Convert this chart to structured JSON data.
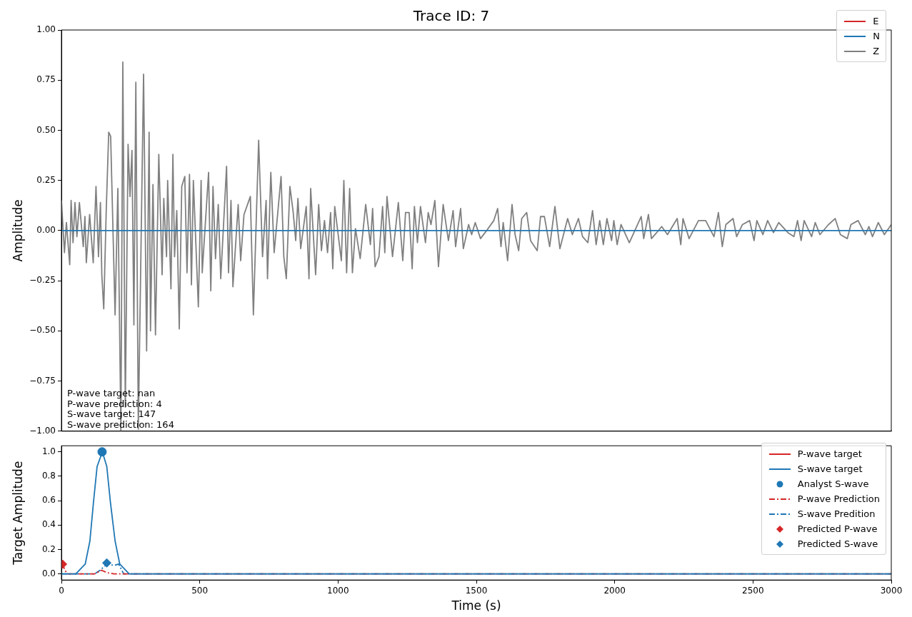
{
  "chart_data": [
    {
      "type": "line",
      "title": "Trace ID: 7",
      "ylabel": "Amplitude",
      "xlim": [
        0,
        3000
      ],
      "ylim": [
        -1,
        1
      ],
      "xticks": [
        0,
        500,
        1000,
        1500,
        2000,
        2500,
        3000
      ],
      "yticks": [
        {
          "value": -1,
          "label": "−1.00"
        },
        {
          "value": -0.75,
          "label": "−0.75"
        },
        {
          "value": -0.5,
          "label": "−0.50"
        },
        {
          "value": -0.25,
          "label": "−0.25"
        },
        {
          "value": 0,
          "label": "0.00"
        },
        {
          "value": 0.25,
          "label": "0.25"
        },
        {
          "value": 0.5,
          "label": "0.50"
        },
        {
          "value": 0.75,
          "label": "0.75"
        },
        {
          "value": 1,
          "label": "1.00"
        }
      ],
      "tick_labels": "y",
      "grid": false,
      "legend": "top right",
      "annotations": [
        "P-wave target: nan",
        "P-wave prediction: 4",
        "S-wave target: 147",
        "S-wave prediction: 164"
      ],
      "series": [
        {
          "name": "E",
          "color": "#d62728"
        },
        {
          "name": "N",
          "color": "#1f77b4",
          "x": [
            0,
            3000
          ],
          "values": [
            0,
            0
          ]
        },
        {
          "name": "Z",
          "color": "#808080",
          "x": [
            0,
            11,
            18,
            30,
            35,
            42,
            49,
            56,
            65,
            79,
            85,
            90,
            102,
            115,
            125,
            134,
            141,
            146,
            153,
            162,
            171,
            178,
            194,
            204,
            215,
            222,
            231,
            241,
            248,
            255,
            262,
            269,
            278,
            297,
            308,
            317,
            322,
            331,
            340,
            352,
            364,
            370,
            380,
            384,
            396,
            403,
            409,
            417,
            426,
            435,
            446,
            454,
            463,
            470,
            477,
            495,
            505,
            509,
            532,
            540,
            548,
            557,
            567,
            576,
            597,
            604,
            613,
            620,
            639,
            648,
            660,
            683,
            694,
            713,
            727,
            740,
            745,
            757,
            769,
            794,
            804,
            813,
            826,
            838,
            847,
            855,
            865,
            885,
            895,
            901,
            919,
            930,
            940,
            951,
            962,
            973,
            981,
            988,
            1012,
            1021,
            1031,
            1042,
            1052,
            1063,
            1080,
            1100,
            1117,
            1125,
            1134,
            1148,
            1161,
            1169,
            1177,
            1197,
            1218,
            1234,
            1244,
            1257,
            1268,
            1276,
            1287,
            1298,
            1316,
            1326,
            1336,
            1350,
            1363,
            1380,
            1399,
            1416,
            1425,
            1443,
            1453,
            1472,
            1483,
            1496,
            1515,
            1537,
            1563,
            1577,
            1589,
            1597,
            1613,
            1629,
            1640,
            1653,
            1664,
            1682,
            1696,
            1720,
            1732,
            1746,
            1765,
            1784,
            1802,
            1830,
            1847,
            1869,
            1884,
            1903,
            1920,
            1933,
            1946,
            1959,
            1972,
            1989,
            1997,
            2009,
            2023,
            2053,
            2096,
            2105,
            2122,
            2133,
            2152,
            2170,
            2191,
            2226,
            2239,
            2247,
            2269,
            2303,
            2329,
            2359,
            2375,
            2389,
            2402,
            2428,
            2441,
            2462,
            2488,
            2504,
            2514,
            2536,
            2553,
            2574,
            2593,
            2626,
            2648,
            2661,
            2674,
            2685,
            2712,
            2725,
            2742,
            2773,
            2797,
            2816,
            2841,
            2854,
            2880,
            2906,
            2919,
            2932,
            2953,
            2975,
            3000
          ],
          "values": [
            0.15,
            -0.11,
            0.04,
            -0.17,
            0.15,
            -0.06,
            0.14,
            -0.03,
            0.14,
            -0.08,
            0.07,
            -0.16,
            0.08,
            -0.16,
            0.22,
            -0.13,
            0.14,
            -0.22,
            -0.39,
            0.1,
            0.49,
            0.47,
            -0.42,
            0.21,
            -1.0,
            0.84,
            -0.88,
            0.43,
            0.17,
            0.4,
            -0.47,
            0.74,
            -0.99,
            0.78,
            -0.6,
            0.49,
            -0.5,
            0.23,
            -0.52,
            0.38,
            -0.22,
            0.16,
            -0.13,
            0.25,
            -0.29,
            0.38,
            -0.13,
            0.1,
            -0.49,
            0.22,
            0.27,
            -0.21,
            0.28,
            -0.27,
            0.25,
            -0.38,
            0.25,
            -0.21,
            0.29,
            -0.3,
            0.22,
            -0.14,
            0.13,
            -0.24,
            0.32,
            -0.21,
            0.15,
            -0.28,
            0.13,
            -0.15,
            0.08,
            0.17,
            -0.42,
            0.45,
            -0.13,
            0.15,
            -0.24,
            0.29,
            -0.11,
            0.27,
            -0.13,
            -0.24,
            0.22,
            0.09,
            -0.05,
            0.16,
            -0.09,
            0.12,
            -0.24,
            0.21,
            -0.22,
            0.13,
            -0.1,
            0.05,
            -0.11,
            0.09,
            -0.19,
            0.12,
            -0.15,
            0.25,
            -0.21,
            0.21,
            -0.21,
            0.01,
            -0.14,
            0.13,
            -0.07,
            0.11,
            -0.18,
            -0.13,
            0.12,
            -0.11,
            0.17,
            -0.13,
            0.14,
            -0.15,
            0.09,
            0.09,
            -0.19,
            0.12,
            -0.06,
            0.12,
            -0.06,
            0.09,
            0.03,
            0.15,
            -0.18,
            0.13,
            -0.05,
            0.1,
            -0.08,
            0.11,
            -0.09,
            0.03,
            -0.02,
            0.04,
            -0.04,
            0.0,
            0.05,
            0.11,
            -0.08,
            0.04,
            -0.15,
            0.13,
            -0.02,
            -0.1,
            0.06,
            0.09,
            -0.05,
            -0.1,
            0.07,
            0.07,
            -0.08,
            0.12,
            -0.09,
            0.06,
            -0.02,
            0.06,
            -0.03,
            -0.06,
            0.1,
            -0.07,
            0.05,
            -0.07,
            0.06,
            -0.05,
            0.05,
            -0.07,
            0.03,
            -0.06,
            0.07,
            -0.04,
            0.08,
            -0.04,
            -0.01,
            0.02,
            -0.02,
            0.06,
            -0.07,
            0.06,
            -0.04,
            0.05,
            0.05,
            -0.03,
            0.09,
            -0.08,
            0.03,
            0.06,
            -0.03,
            0.03,
            0.05,
            -0.05,
            0.05,
            -0.02,
            0.05,
            -0.01,
            0.04,
            -0.01,
            -0.03,
            0.05,
            -0.05,
            0.05,
            -0.03,
            0.04,
            -0.02,
            0.03,
            0.06,
            -0.02,
            -0.04,
            0.03,
            0.05,
            -0.02,
            0.02,
            -0.03,
            0.04,
            -0.02,
            0.03
          ]
        }
      ]
    },
    {
      "type": "line",
      "xlabel": "Time (s)",
      "ylabel": "Target Amplitude",
      "xlim": [
        0,
        3000
      ],
      "ylim": [
        -0.05,
        1.05
      ],
      "xticks": [
        0,
        500,
        1000,
        1500,
        2000,
        2500,
        3000
      ],
      "yticks": [
        {
          "value": 0,
          "label": "0.0"
        },
        {
          "value": 0.2,
          "label": "0.2"
        },
        {
          "value": 0.4,
          "label": "0.4"
        },
        {
          "value": 0.6,
          "label": "0.6"
        },
        {
          "value": 0.8,
          "label": "0.8"
        },
        {
          "value": 1,
          "label": "1.0"
        }
      ],
      "grid": false,
      "legend": "top right",
      "series": [
        {
          "name": "P-wave target",
          "color": "#d62728"
        },
        {
          "name": "S-wave target",
          "color": "#1f77b4",
          "x": [
            0,
            52,
            86,
            103,
            116,
            129,
            148,
            164,
            177,
            194,
            211,
            245,
            3000
          ],
          "values": [
            0,
            0,
            0.08,
            0.27,
            0.59,
            0.88,
            1.0,
            0.88,
            0.59,
            0.27,
            0.08,
            0,
            0
          ]
        },
        {
          "name": "Analyst S-wave",
          "type": "scatter",
          "marker": "circle",
          "color": "#1f77b4",
          "x": [
            147
          ],
          "values": [
            1.0
          ]
        },
        {
          "name": "P-wave Prediction",
          "color": "#d62728",
          "line_style": "dashdot",
          "x": [
            0,
            5,
            20,
            120,
            145,
            165,
            190,
            3000
          ],
          "values": [
            0.08,
            0.07,
            0,
            0,
            0.03,
            0.01,
            0,
            0
          ]
        },
        {
          "name": "S-wave Predition",
          "color": "#1f77b4",
          "line_style": "dashdot",
          "x": [
            0,
            120,
            140,
            164,
            190,
            207,
            225,
            3000
          ],
          "values": [
            0,
            0,
            0.03,
            0.08,
            0.07,
            0.08,
            0,
            0
          ]
        },
        {
          "name": "Predicted P-wave",
          "type": "scatter",
          "marker": "diamond",
          "color": "#d62728",
          "x": [
            4
          ],
          "values": [
            0.08
          ]
        },
        {
          "name": "Predicted S-wave",
          "type": "scatter",
          "marker": "diamond",
          "color": "#1f77b4",
          "x": [
            164
          ],
          "values": [
            0.09
          ]
        }
      ]
    }
  ]
}
